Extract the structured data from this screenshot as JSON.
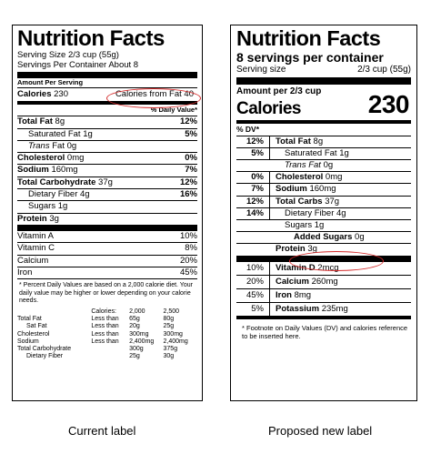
{
  "current": {
    "title": "Nutrition Facts",
    "serving_size": "Serving Size 2/3 cup (55g)",
    "servings_per_container": "Servings Per Container About 8",
    "amount_per_serving": "Amount Per Serving",
    "calories_label": "Calories",
    "calories_value": "230",
    "calories_from_fat": "Calories from Fat 40",
    "dv_header": "% Daily Value*",
    "nutrients": [
      {
        "name": "Total Fat",
        "amount": "8g",
        "dv": "12%"
      },
      {
        "name": "Saturated Fat",
        "amount": "1g",
        "dv": "5%"
      },
      {
        "name": "Trans",
        "amount": "Fat 0g",
        "dv": ""
      },
      {
        "name": "Cholesterol",
        "amount": "0mg",
        "dv": "0%"
      },
      {
        "name": "Sodium",
        "amount": "160mg",
        "dv": "7%"
      },
      {
        "name": "Total Carbohydrate",
        "amount": "37g",
        "dv": "12%"
      },
      {
        "name": "Dietary Fiber",
        "amount": "4g",
        "dv": "16%"
      },
      {
        "name": "Sugars",
        "amount": "1g",
        "dv": ""
      },
      {
        "name": "Protein",
        "amount": "3g",
        "dv": ""
      }
    ],
    "vitamins": [
      {
        "name": "Vitamin A",
        "dv": "10%"
      },
      {
        "name": "Vitamin C",
        "dv": "8%"
      },
      {
        "name": "Calcium",
        "dv": "20%"
      },
      {
        "name": "Iron",
        "dv": "45%"
      }
    ],
    "footnote": "* Percent Daily Values are based on a 2,000 calorie diet. Your daily value may be higher or lower depending on your calorie needs.",
    "ref_table": {
      "header": [
        "",
        "Calories:",
        "2,000",
        "2,500"
      ],
      "rows": [
        [
          "Total Fat",
          "Less than",
          "65g",
          "80g"
        ],
        [
          "Sat Fat",
          "Less than",
          "20g",
          "25g"
        ],
        [
          "Cholesterol",
          "Less than",
          "300mg",
          "300mg"
        ],
        [
          "Sodium",
          "Less than",
          "2,400mg",
          "2,400mg"
        ],
        [
          "Total Carbohydrate",
          "",
          "300g",
          "375g"
        ],
        [
          "Dietary Fiber",
          "",
          "25g",
          "30g"
        ]
      ]
    },
    "caption": "Current label"
  },
  "proposed": {
    "title": "Nutrition Facts",
    "servings": "8 servings per container",
    "serving_size_label": "Serving size",
    "serving_size_value": "2/3 cup (55g)",
    "amount_per": "Amount per 2/3 cup",
    "calories_label": "Calories",
    "calories_value": "230",
    "dv_header": "% DV*",
    "nutrients": [
      {
        "dv": "12%",
        "name": "Total Fat",
        "amount": "8g"
      },
      {
        "dv": "5%",
        "name": "Saturated Fat",
        "amount": "1g"
      },
      {
        "dv": "",
        "name": "Trans Fat",
        "amount": "0g"
      },
      {
        "dv": "0%",
        "name": "Cholesterol",
        "amount": "0mg"
      },
      {
        "dv": "7%",
        "name": "Sodium",
        "amount": "160mg"
      },
      {
        "dv": "12%",
        "name": "Total Carbs",
        "amount": "37g"
      },
      {
        "dv": "14%",
        "name": "Dietary Fiber",
        "amount": "4g"
      },
      {
        "dv": "",
        "name": "Sugars",
        "amount": "1g"
      },
      {
        "dv": "",
        "name": "Added Sugars",
        "amount": "0g"
      },
      {
        "dv": "",
        "name": "Protein",
        "amount": "3g"
      }
    ],
    "vitamins": [
      {
        "dv": "10%",
        "name": "Vitamin D",
        "amount": "2mcg"
      },
      {
        "dv": "20%",
        "name": "Calcium",
        "amount": "260mg"
      },
      {
        "dv": "45%",
        "name": "Iron",
        "amount": "8mg"
      },
      {
        "dv": "5%",
        "name": "Potassium",
        "amount": "235mg"
      }
    ],
    "footnote": "* Footnote on Daily Values (DV) and calories reference to be inserted here.",
    "caption": "Proposed new label"
  },
  "colors": {
    "highlight": "#d42a2a"
  }
}
